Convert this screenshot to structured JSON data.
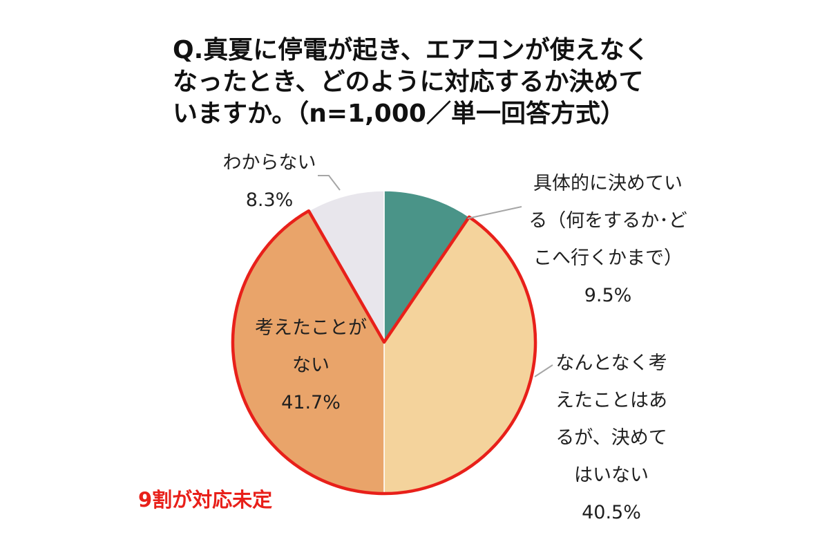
{
  "title": {
    "line1": "Q.真夏に停電が起き、エアコンが使えなく",
    "line2": "なったとき、どのように対応するか決めて",
    "line3": "いますか。（n=1,000／単一回答方式）"
  },
  "callout": "9割が対応未定",
  "labels": {
    "decided": {
      "line1": "具体的に決めてい",
      "line2": "る（何をするか･ど",
      "line3": "こへ行くかまで）",
      "value": "9.5%"
    },
    "vague": {
      "line1": "なんとなく考",
      "line2": "えたことはあ",
      "line3": "るが、決めて",
      "line4": "はいない",
      "value": "40.5%"
    },
    "never": {
      "line1": "考えたことが",
      "line2": "ない",
      "value": "41.7%"
    },
    "unknown": {
      "line1": "わからない",
      "value": "8.3%"
    }
  },
  "colors": {
    "decided": "#4a9488",
    "vague": "#f4d39c",
    "never": "#e9a46a",
    "unknown": "#e8e6ec",
    "highlight": "#e8201a",
    "leader": "#a6a6a6"
  },
  "chart_data": {
    "type": "pie",
    "title": "Q.真夏に停電が起き、エアコンが使えなくなったとき、どのように対応するか決めていますか。（n=1,000／単一回答方式）",
    "categories": [
      "具体的に決めている（何をするか･どこへ行くかまで）",
      "なんとなく考えたことはあるが、決めてはいない",
      "考えたことがない",
      "わからない"
    ],
    "values": [
      9.5,
      40.5,
      41.7,
      8.3
    ],
    "unit": "%",
    "start": "12 o'clock, clockwise",
    "highlighted_categories": [
      "なんとなく考えたことはあるが、決めてはいない",
      "考えたことがない"
    ],
    "annotation": "9割が対応未定"
  }
}
